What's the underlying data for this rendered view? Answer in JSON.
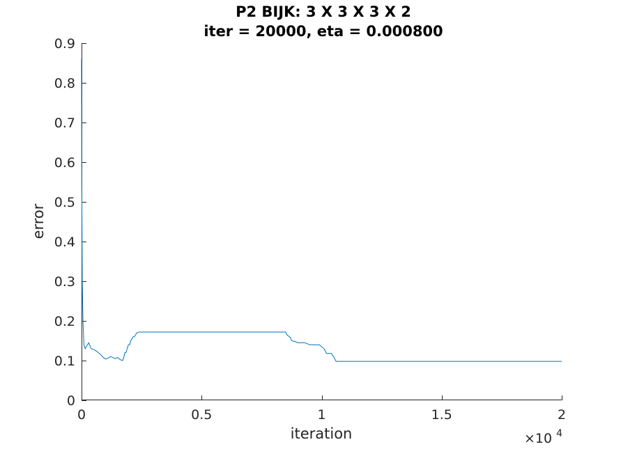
{
  "chart_data": {
    "type": "line",
    "title": "P2 BIJK: 3 X 3 X 3 X 2",
    "subtitle": "iter = 20000, eta = 0.000800",
    "xlabel": "iteration",
    "ylabel": "error",
    "xlim": [
      0,
      20000
    ],
    "ylim": [
      0,
      0.9
    ],
    "x_exponent_label": "×10",
    "x_exponent_power": "4",
    "x_ticks": [
      0,
      5000,
      10000,
      15000,
      20000
    ],
    "x_tick_labels": [
      "0",
      "0.5",
      "1",
      "1.5",
      "2"
    ],
    "y_ticks": [
      0,
      0.1,
      0.2,
      0.3,
      0.4,
      0.5,
      0.6,
      0.7,
      0.8,
      0.9
    ],
    "y_tick_labels": [
      "0",
      "0.1",
      "0.2",
      "0.3",
      "0.4",
      "0.5",
      "0.6",
      "0.7",
      "0.8",
      "0.9"
    ],
    "grid": false,
    "line_color": "#0072bd",
    "series": [
      {
        "x": [
          0,
          10,
          30,
          60,
          100,
          150,
          200,
          300,
          400,
          500,
          600,
          700,
          800,
          900,
          1000,
          1100,
          1200,
          1300,
          1400,
          1500,
          1600,
          1700,
          1750,
          1800,
          1850,
          1900,
          1950,
          2000,
          2050,
          2100,
          2150,
          2200,
          2250,
          2300,
          2400,
          2500,
          3000,
          4000,
          5000,
          6000,
          7000,
          8000,
          8500,
          8550,
          8700,
          8750,
          8900,
          9000,
          9100,
          9300,
          9500,
          9700,
          9900,
          10100,
          10200,
          10300,
          10400,
          10500,
          10600,
          10700,
          11000,
          12000,
          13000,
          14000,
          15000,
          16000,
          17000,
          18000,
          19000,
          20000
        ],
        "y": [
          0.86,
          0.55,
          0.3,
          0.2,
          0.14,
          0.13,
          0.135,
          0.145,
          0.13,
          0.128,
          0.125,
          0.12,
          0.115,
          0.108,
          0.104,
          0.106,
          0.11,
          0.108,
          0.105,
          0.108,
          0.103,
          0.1,
          0.105,
          0.12,
          0.12,
          0.13,
          0.14,
          0.14,
          0.15,
          0.155,
          0.16,
          0.16,
          0.165,
          0.17,
          0.172,
          0.172,
          0.172,
          0.172,
          0.172,
          0.172,
          0.172,
          0.172,
          0.172,
          0.165,
          0.158,
          0.15,
          0.148,
          0.145,
          0.145,
          0.145,
          0.14,
          0.14,
          0.14,
          0.13,
          0.118,
          0.118,
          0.118,
          0.11,
          0.098,
          0.098,
          0.098,
          0.098,
          0.098,
          0.098,
          0.098,
          0.098,
          0.098,
          0.098,
          0.098,
          0.098
        ]
      }
    ]
  }
}
